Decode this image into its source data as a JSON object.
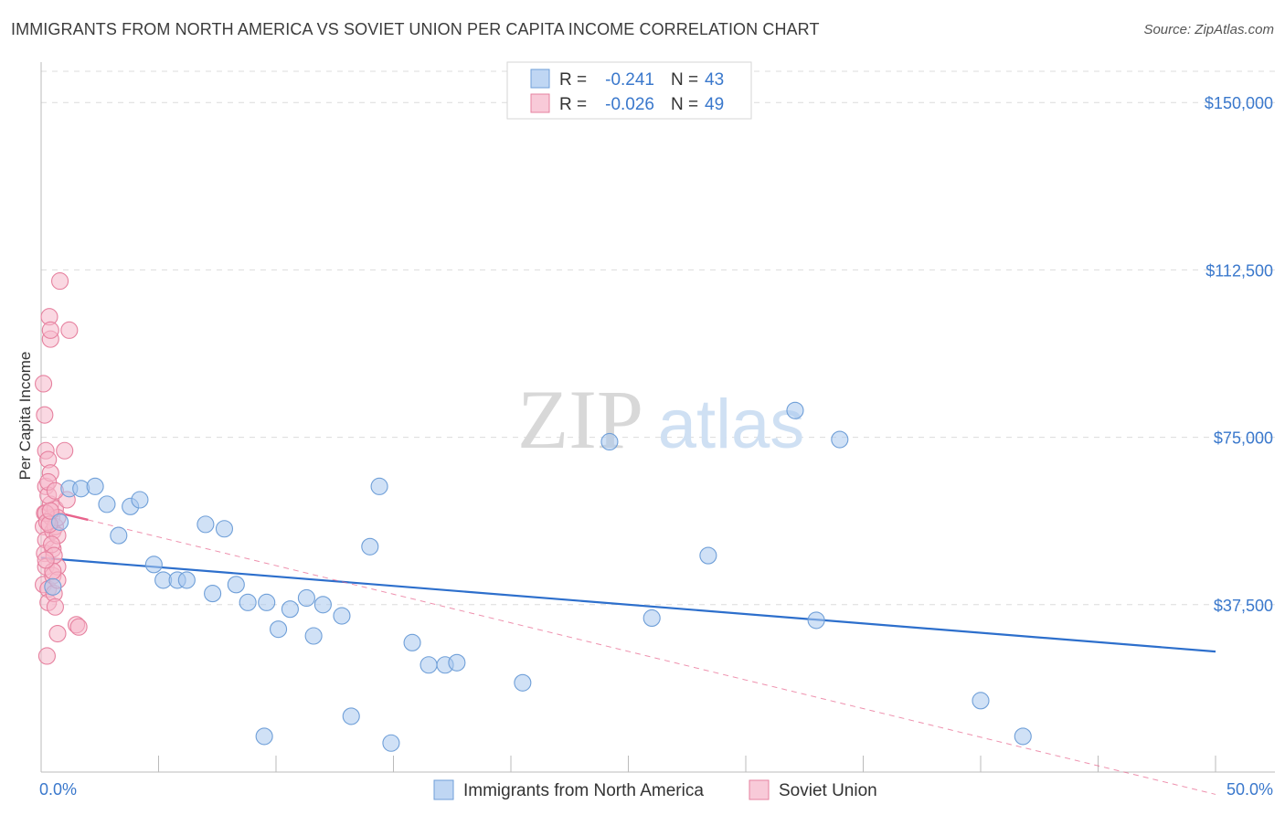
{
  "title": "IMMIGRANTS FROM NORTH AMERICA VS SOVIET UNION PER CAPITA INCOME CORRELATION CHART",
  "source": "Source: ZipAtlas.com",
  "watermark": {
    "zip": "ZIP",
    "atlas": "atlas"
  },
  "chart_data": {
    "type": "scatter",
    "title": "IMMIGRANTS FROM NORTH AMERICA VS SOVIET UNION PER CAPITA INCOME CORRELATION CHART",
    "ylabel": "Per Capita Income",
    "xlabel": "",
    "xlim": [
      0,
      50
    ],
    "ylim": [
      0,
      157000
    ],
    "x_tick_labels": [
      "0.0%",
      "50.0%"
    ],
    "y_ticks": [
      {
        "value": 37500,
        "label": "$37,500"
      },
      {
        "value": 75000,
        "label": "$75,000"
      },
      {
        "value": 112500,
        "label": "$112,500"
      },
      {
        "value": 150000,
        "label": "$150,000"
      }
    ],
    "legend": [
      {
        "label": "R = ",
        "r": "-0.241",
        "n_label": "N = ",
        "n": "43"
      },
      {
        "label": "R = ",
        "r": "-0.026",
        "n_label": "N = ",
        "n": "49"
      }
    ],
    "series": [
      {
        "name": "Immigrants from North America",
        "color": "#a9c8ef",
        "edge": "#6f9fd8",
        "line_color": "#2d6fcc",
        "trend": {
          "x": [
            0,
            50
          ],
          "y": [
            48000,
            27000
          ]
        },
        "points": [
          [
            0.5,
            41500
          ],
          [
            0.8,
            56000
          ],
          [
            1.2,
            63500
          ],
          [
            1.7,
            63500
          ],
          [
            2.3,
            64000
          ],
          [
            2.8,
            60000
          ],
          [
            3.3,
            53000
          ],
          [
            3.8,
            59500
          ],
          [
            4.2,
            61000
          ],
          [
            4.8,
            46500
          ],
          [
            5.2,
            43000
          ],
          [
            5.8,
            43000
          ],
          [
            6.2,
            43000
          ],
          [
            7.0,
            55500
          ],
          [
            7.3,
            40000
          ],
          [
            7.8,
            54500
          ],
          [
            8.3,
            42000
          ],
          [
            8.8,
            38000
          ],
          [
            9.5,
            8000
          ],
          [
            9.6,
            38000
          ],
          [
            10.1,
            32000
          ],
          [
            10.6,
            36500
          ],
          [
            11.3,
            39000
          ],
          [
            11.6,
            30500
          ],
          [
            12.0,
            37500
          ],
          [
            12.8,
            35000
          ],
          [
            13.2,
            12500
          ],
          [
            14.0,
            50500
          ],
          [
            14.4,
            64000
          ],
          [
            14.9,
            6500
          ],
          [
            15.8,
            29000
          ],
          [
            16.5,
            24000
          ],
          [
            17.2,
            24000
          ],
          [
            17.7,
            24500
          ],
          [
            20.5,
            20000
          ],
          [
            24.2,
            74000
          ],
          [
            26.0,
            34500
          ],
          [
            28.4,
            48500
          ],
          [
            32.1,
            81000
          ],
          [
            33.0,
            34000
          ],
          [
            34.0,
            74500
          ],
          [
            40.0,
            16000
          ],
          [
            41.8,
            8000
          ]
        ]
      },
      {
        "name": "Soviet Union",
        "color": "#f6b8cb",
        "edge": "#e6819f",
        "line_color": "#e8638c",
        "trend": {
          "x": [
            0,
            2.0
          ],
          "y": [
            59000,
            56500
          ]
        },
        "trend_ext": {
          "x": [
            2.0,
            50
          ],
          "y": [
            56500,
            -5000
          ]
        },
        "points": [
          [
            0.1,
            87000
          ],
          [
            0.15,
            80000
          ],
          [
            0.2,
            72000
          ],
          [
            0.2,
            64000
          ],
          [
            0.15,
            58000
          ],
          [
            0.1,
            55000
          ],
          [
            0.2,
            52000
          ],
          [
            0.15,
            49000
          ],
          [
            0.2,
            46000
          ],
          [
            0.1,
            42000
          ],
          [
            0.3,
            41000
          ],
          [
            0.3,
            38000
          ],
          [
            0.25,
            26000
          ],
          [
            0.35,
            102000
          ],
          [
            0.4,
            97000
          ],
          [
            0.4,
            99000
          ],
          [
            0.3,
            70000
          ],
          [
            0.4,
            67000
          ],
          [
            0.4,
            60000
          ],
          [
            0.45,
            57000
          ],
          [
            0.5,
            54000
          ],
          [
            0.5,
            50000
          ],
          [
            0.5,
            44000
          ],
          [
            0.55,
            40000
          ],
          [
            0.6,
            37000
          ],
          [
            0.6,
            59000
          ],
          [
            0.6,
            55000
          ],
          [
            0.3,
            62000
          ],
          [
            0.7,
            53000
          ],
          [
            0.7,
            46000
          ],
          [
            0.7,
            43000
          ],
          [
            0.7,
            57000
          ],
          [
            0.8,
            110000
          ],
          [
            0.7,
            31000
          ],
          [
            1.0,
            72000
          ],
          [
            1.1,
            61000
          ],
          [
            1.2,
            99000
          ],
          [
            1.5,
            33000
          ],
          [
            1.6,
            32500
          ],
          [
            0.2,
            58000
          ],
          [
            0.25,
            56000
          ],
          [
            0.35,
            55500
          ],
          [
            0.4,
            58500
          ],
          [
            0.45,
            51000
          ],
          [
            0.55,
            48500
          ],
          [
            0.5,
            45000
          ],
          [
            0.3,
            65000
          ],
          [
            0.6,
            63000
          ],
          [
            0.2,
            47500
          ]
        ]
      }
    ]
  },
  "legend_bottom": [
    {
      "label": "Immigrants from North America"
    },
    {
      "label": "Soviet Union"
    }
  ]
}
